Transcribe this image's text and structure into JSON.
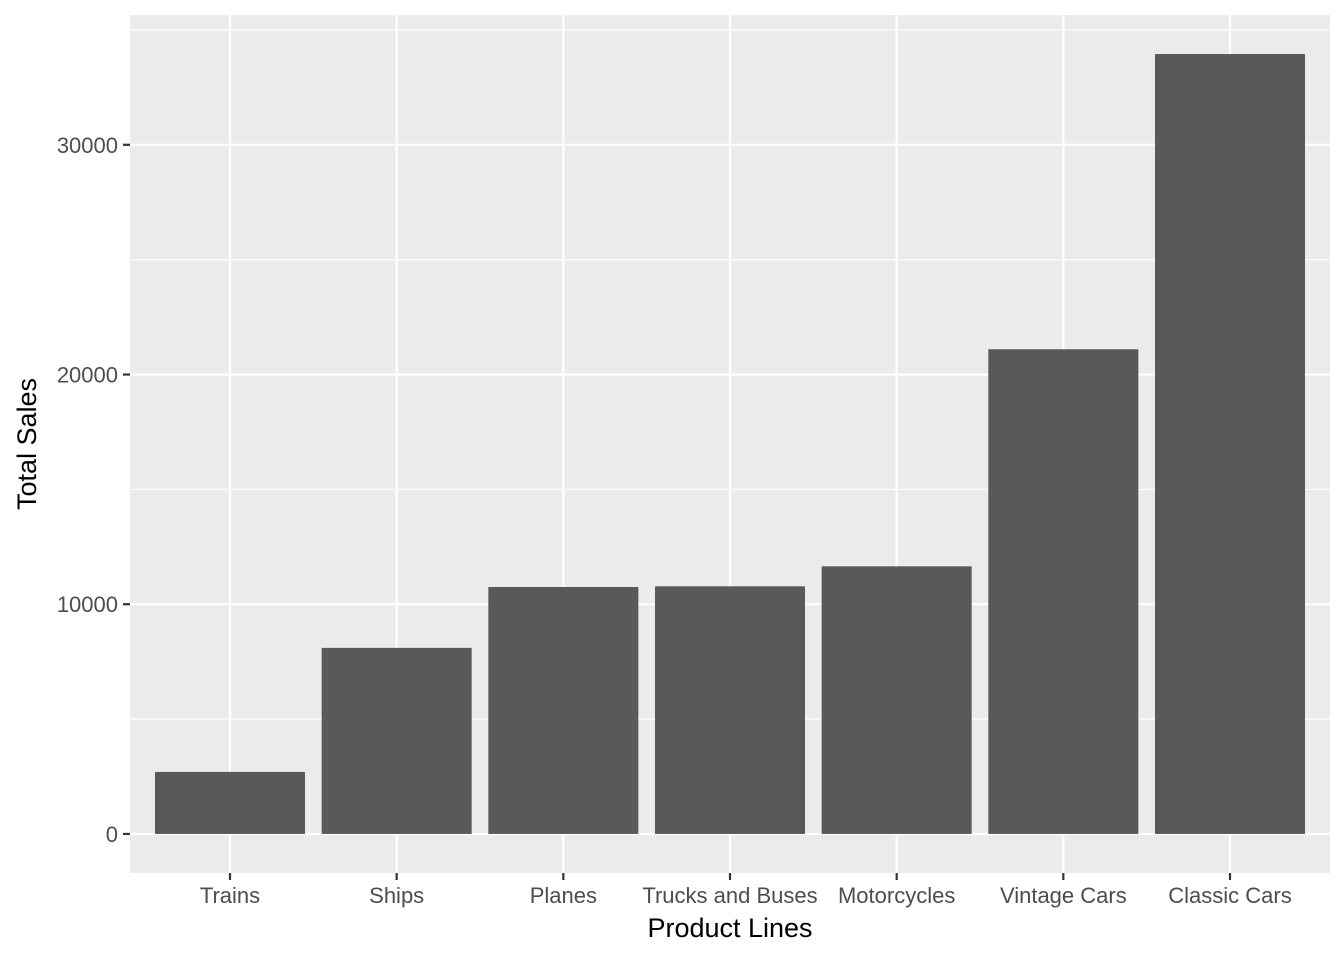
{
  "chart_data": {
    "type": "bar",
    "title": "",
    "xlabel": "Product Lines",
    "ylabel": "Total Sales",
    "categories": [
      "Trains",
      "Ships",
      "Planes",
      "Trucks and Buses",
      "Motorcycles",
      "Vintage Cars",
      "Classic Cars"
    ],
    "values": [
      2700,
      8100,
      10750,
      10780,
      11650,
      21100,
      33950
    ],
    "ylim": [
      -1700,
      35650
    ],
    "yticks": [
      0,
      10000,
      20000,
      30000
    ],
    "ytick_labels": [
      "0",
      "10000",
      "20000",
      "30000"
    ],
    "grid": true,
    "legend": "none",
    "colors": {
      "bar": "#595959",
      "panel": "#ebebeb",
      "grid": "#ffffff",
      "tick": "#333333"
    }
  }
}
